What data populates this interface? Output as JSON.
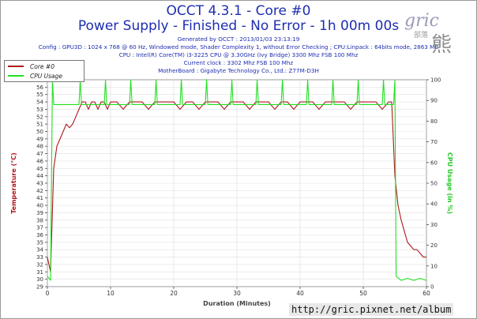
{
  "header": {
    "title_line1": "OCCT 4.3.1 - Core #0",
    "title_line2": "Power Supply - Finished - No Error - 1h 00m 00s",
    "info_line1": "Generated by OCCT : 2013/01/03 23:13:19",
    "info_line2": "Config : GPU3D : 1024 x 768 @ 60 Hz, Windowed mode, Shader Complexity 1, without Error Checking ; CPU:Linpack : 64bits mode, 2863 MB",
    "info_line3": "CPU : Intel(R) Core(TM) i3-3225 CPU @ 3.30GHz (Ivy Bridge) 3300 Mhz FSB 100 Mhz",
    "info_line4": "Current clock : 3302 Mhz FSB 100 Mhz",
    "info_line5": "MotherBoard : Gigabyte Technology Co., Ltd.: Z77M-D3H"
  },
  "watermark": {
    "logo": "gric",
    "cjk": "熊",
    "small": "部落"
  },
  "footer": {
    "url": "http://gric.pixnet.net/album"
  },
  "colors": {
    "core": "#b0171e",
    "cpu": "#22e022",
    "title": "#1e2eb0",
    "left_axis": "#b0171e",
    "right_axis": "#22cc22"
  },
  "chart_data": {
    "type": "line",
    "xlabel": "Duration (Minutes)",
    "ylabel_left": "Temperature (°C)",
    "ylabel_right": "CPU Usage (in %)",
    "x_range": [
      0,
      60
    ],
    "x_ticks": [
      0,
      10,
      20,
      30,
      40,
      50,
      60
    ],
    "y_left_range": [
      29,
      57
    ],
    "y_left_ticks": [
      29,
      30,
      31,
      32,
      33,
      34,
      35,
      36,
      37,
      38,
      39,
      40,
      41,
      42,
      43,
      44,
      45,
      46,
      47,
      48,
      49,
      50,
      51,
      52,
      53,
      54,
      55,
      56,
      57
    ],
    "y_right_range": [
      0,
      100
    ],
    "y_right_ticks": [
      0,
      10,
      20,
      30,
      40,
      50,
      60,
      70,
      80,
      90,
      100
    ],
    "grid": true,
    "legend_position": "top-left",
    "series": [
      {
        "name": "Core #0",
        "axis": "left",
        "x": [
          0,
          0.5,
          1,
          1.5,
          2,
          2.5,
          3,
          3.5,
          4,
          4.5,
          5,
          5.5,
          6,
          6.5,
          7,
          7.5,
          8,
          8.5,
          9,
          9.5,
          10,
          11,
          12,
          13,
          14,
          15,
          16,
          17,
          18,
          19,
          20,
          21,
          22,
          23,
          24,
          25,
          26,
          27,
          28,
          29,
          30,
          31,
          32,
          33,
          34,
          35,
          36,
          37,
          38,
          39,
          40,
          41,
          42,
          43,
          44,
          45,
          46,
          47,
          48,
          49,
          50,
          51,
          52,
          53,
          54,
          54.5,
          55,
          55.5,
          56,
          56.5,
          57,
          57.5,
          58,
          58.5,
          59,
          59.5,
          60
        ],
        "values": [
          33,
          31,
          45,
          48,
          49,
          50,
          51,
          50.5,
          51,
          52,
          53,
          54,
          54,
          53,
          54,
          54,
          53,
          54,
          54,
          53,
          54,
          54,
          53,
          54,
          54,
          54,
          53,
          54,
          54,
          54,
          54,
          53,
          54,
          54,
          53,
          54,
          54,
          54,
          53,
          54,
          54,
          54,
          53,
          54,
          54,
          54,
          53,
          54,
          54,
          53,
          54,
          54,
          54,
          53,
          54,
          54,
          54,
          54,
          53,
          54,
          54,
          54,
          54,
          53,
          54,
          54,
          44,
          40,
          38,
          36.5,
          35,
          34.5,
          34,
          34,
          33.5,
          33,
          33
        ]
      },
      {
        "name": "CPU Usage",
        "axis": "right",
        "x": [
          0,
          0.5,
          0.8,
          1,
          2,
          3,
          4,
          5,
          5.2,
          5.4,
          6,
          8,
          9,
          9.2,
          9.4,
          10,
          12,
          13,
          13.2,
          13.4,
          14,
          16,
          17,
          17.2,
          17.4,
          18,
          20,
          21,
          21.2,
          21.4,
          22,
          24,
          25,
          25.2,
          25.4,
          26,
          28,
          29,
          29.2,
          29.4,
          30,
          32,
          33,
          33.2,
          33.4,
          34,
          36,
          37,
          37.2,
          37.4,
          38,
          40,
          41,
          41.2,
          41.4,
          42,
          44,
          45,
          45.2,
          45.4,
          46,
          48,
          49,
          49.2,
          49.4,
          50,
          52,
          53,
          53.2,
          53.4,
          54,
          54.8,
          55,
          55.2,
          56,
          57,
          58,
          59,
          60
        ],
        "values": [
          5,
          3,
          100,
          88,
          88,
          88,
          88,
          88,
          100,
          88,
          88,
          88,
          88,
          100,
          88,
          88,
          88,
          88,
          100,
          88,
          88,
          88,
          88,
          100,
          88,
          88,
          88,
          88,
          100,
          88,
          88,
          88,
          88,
          100,
          88,
          88,
          88,
          88,
          100,
          88,
          88,
          88,
          88,
          100,
          88,
          88,
          88,
          88,
          100,
          88,
          88,
          88,
          88,
          100,
          88,
          88,
          88,
          88,
          100,
          88,
          88,
          88,
          88,
          100,
          88,
          88,
          88,
          88,
          100,
          88,
          88,
          88,
          100,
          5,
          3,
          4,
          3,
          4,
          3
        ]
      }
    ]
  }
}
